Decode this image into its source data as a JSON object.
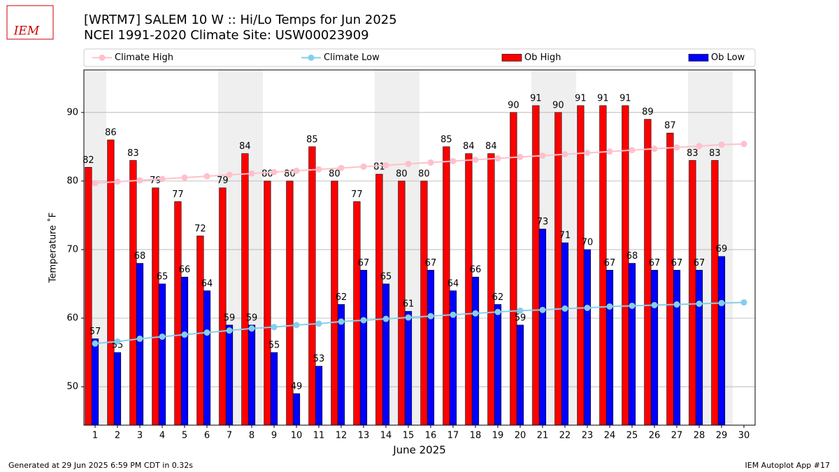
{
  "chart_data": {
    "type": "bar",
    "logo_text": "IEM",
    "title": "[WRTM7] SALEM 10 W :: Hi/Lo Temps for Jun 2025",
    "subtitle": "NCEI 1991-2020 Climate Site: USW00023909",
    "x_label": "June 2025",
    "y_label": "Temperature ˚F",
    "footer_left": "Generated at 29 Jun 2025 6:59 PM CDT in 0.32s",
    "footer_right": "IEM Autoplot App #17",
    "categories": [
      "1",
      "2",
      "3",
      "4",
      "5",
      "6",
      "7",
      "8",
      "9",
      "10",
      "11",
      "12",
      "13",
      "14",
      "15",
      "16",
      "17",
      "18",
      "19",
      "20",
      "21",
      "22",
      "23",
      "24",
      "25",
      "26",
      "27",
      "28",
      "29",
      "30"
    ],
    "shaded_categories": [
      "1",
      "7",
      "8",
      "14",
      "15",
      "21",
      "22",
      "28",
      "29"
    ],
    "ylim": [
      44.4,
      96.2
    ],
    "yticks": [
      50,
      60,
      70,
      80,
      90
    ],
    "grid": true,
    "legend": "top",
    "series": [
      {
        "name": "Climate High",
        "type": "line",
        "color": "#ffc0cb",
        "values": [
          79.7,
          79.9,
          80.1,
          80.3,
          80.5,
          80.7,
          80.9,
          81.1,
          81.3,
          81.5,
          81.7,
          81.9,
          82.1,
          82.3,
          82.5,
          82.7,
          82.9,
          83.1,
          83.3,
          83.5,
          83.7,
          83.9,
          84.1,
          84.3,
          84.5,
          84.7,
          84.9,
          85.1,
          85.3,
          85.4
        ]
      },
      {
        "name": "Climate Low",
        "type": "line",
        "color": "#87ceeb",
        "values": [
          56.3,
          56.6,
          57.0,
          57.3,
          57.6,
          57.9,
          58.2,
          58.5,
          58.7,
          59.0,
          59.2,
          59.5,
          59.7,
          59.9,
          60.1,
          60.3,
          60.5,
          60.7,
          60.9,
          61.1,
          61.2,
          61.4,
          61.5,
          61.7,
          61.8,
          61.9,
          62.0,
          62.1,
          62.2,
          62.3
        ]
      },
      {
        "name": "Ob High",
        "type": "bar",
        "color": "#ff0000",
        "values": [
          82,
          86,
          83,
          79,
          77,
          72,
          79,
          84,
          80,
          80,
          85,
          80,
          77,
          81,
          80,
          80,
          85,
          84,
          84,
          90,
          91,
          90,
          91,
          91,
          91,
          89,
          87,
          83,
          83,
          null
        ]
      },
      {
        "name": "Ob Low",
        "type": "bar",
        "color": "#0000ff",
        "values": [
          57,
          55,
          68,
          65,
          66,
          64,
          59,
          59,
          55,
          49,
          53,
          62,
          67,
          65,
          61,
          67,
          64,
          66,
          62,
          59,
          73,
          71,
          70,
          67,
          68,
          67,
          67,
          67,
          69,
          null
        ]
      }
    ]
  }
}
